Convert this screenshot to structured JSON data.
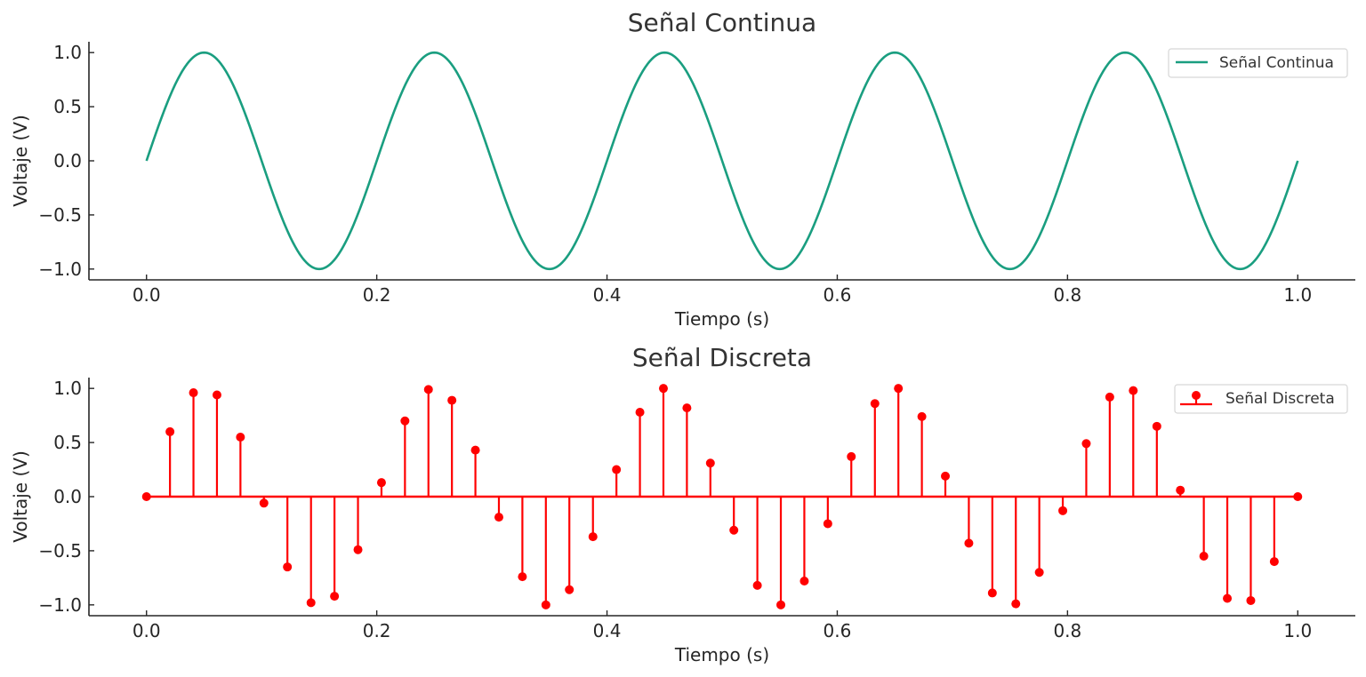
{
  "chart_data": [
    {
      "type": "line",
      "title": "Señal Continua",
      "xlabel": "Tiempo (s)",
      "ylabel": "Voltaje (V)",
      "xlim": [
        -0.05,
        1.05
      ],
      "ylim": [
        -1.1,
        1.1
      ],
      "xticks": [
        0.0,
        0.2,
        0.4,
        0.6,
        0.8,
        1.0
      ],
      "xtick_labels": [
        "0.0",
        "0.2",
        "0.4",
        "0.6",
        "0.8",
        "1.0"
      ],
      "yticks": [
        1.0,
        0.5,
        0.0,
        -0.5,
        -1.0
      ],
      "ytick_labels": [
        "1.0",
        "0.5",
        "0.0",
        "−0.5",
        "−1.0"
      ],
      "grid": false,
      "legend_position": "top-right",
      "series": [
        {
          "name": "Señal Continua",
          "function": "sin",
          "frequency_hz": 5,
          "amplitude": 1,
          "x_range": [
            0,
            1
          ],
          "color": "#1a9e80"
        }
      ]
    },
    {
      "type": "stem",
      "title": "Señal Discreta",
      "xlabel": "Tiempo (s)",
      "ylabel": "Voltaje (V)",
      "xlim": [
        -0.05,
        1.05
      ],
      "ylim": [
        -1.1,
        1.1
      ],
      "xticks": [
        0.0,
        0.2,
        0.4,
        0.6,
        0.8,
        1.0
      ],
      "xtick_labels": [
        "0.0",
        "0.2",
        "0.4",
        "0.6",
        "0.8",
        "1.0"
      ],
      "yticks": [
        1.0,
        0.5,
        0.0,
        -0.5,
        -1.0
      ],
      "ytick_labels": [
        "1.0",
        "0.5",
        "0.0",
        "−0.5",
        "−1.0"
      ],
      "grid": false,
      "legend_position": "top-right",
      "series": [
        {
          "name": "Señal Discreta",
          "color": "#ff0000",
          "x": [
            0.0,
            0.0204,
            0.0408,
            0.0612,
            0.0816,
            0.102,
            0.1224,
            0.1429,
            0.1633,
            0.1837,
            0.2041,
            0.2245,
            0.2449,
            0.2653,
            0.2857,
            0.3061,
            0.3265,
            0.3469,
            0.3673,
            0.3878,
            0.4082,
            0.4286,
            0.449,
            0.4694,
            0.4898,
            0.5102,
            0.5306,
            0.551,
            0.5714,
            0.5918,
            0.6122,
            0.6327,
            0.6531,
            0.6735,
            0.6939,
            0.7143,
            0.7347,
            0.7551,
            0.7755,
            0.7959,
            0.8163,
            0.8367,
            0.8571,
            0.8776,
            0.898,
            0.9184,
            0.9388,
            0.9592,
            0.9796,
            1.0
          ],
          "values": [
            0.0,
            0.6,
            0.96,
            0.94,
            0.55,
            -0.06,
            -0.65,
            -0.98,
            -0.92,
            -0.49,
            0.13,
            0.7,
            0.99,
            0.89,
            0.43,
            -0.19,
            -0.74,
            -1.0,
            -0.86,
            -0.37,
            0.25,
            0.78,
            1.0,
            0.82,
            0.31,
            -0.31,
            -0.82,
            -1.0,
            -0.78,
            -0.25,
            0.37,
            0.86,
            1.0,
            0.74,
            0.19,
            -0.43,
            -0.89,
            -0.99,
            -0.7,
            -0.13,
            0.49,
            0.92,
            0.98,
            0.65,
            0.06,
            -0.55,
            -0.94,
            -0.96,
            -0.6,
            0.0
          ]
        }
      ]
    }
  ]
}
